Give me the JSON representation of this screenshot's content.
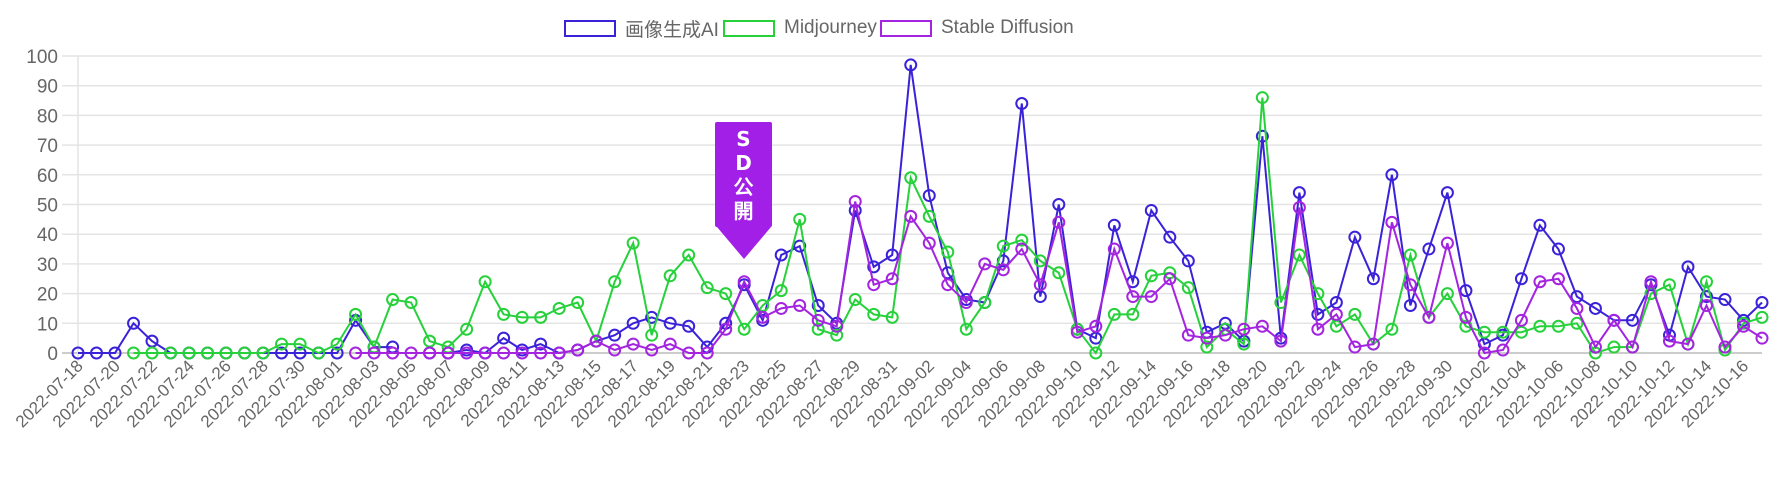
{
  "chart_data": {
    "type": "line",
    "title": "",
    "xlabel": "",
    "ylabel": "",
    "ylim": [
      0,
      100
    ],
    "yticks": [
      0,
      10,
      20,
      30,
      40,
      50,
      60,
      70,
      80,
      90,
      100
    ],
    "grid": true,
    "legend_position": "top",
    "x": [
      "2022-07-18",
      "2022-07-19",
      "2022-07-20",
      "2022-07-21",
      "2022-07-22",
      "2022-07-23",
      "2022-07-24",
      "2022-07-25",
      "2022-07-26",
      "2022-07-27",
      "2022-07-28",
      "2022-07-29",
      "2022-07-30",
      "2022-07-31",
      "2022-08-01",
      "2022-08-02",
      "2022-08-03",
      "2022-08-04",
      "2022-08-05",
      "2022-08-06",
      "2022-08-07",
      "2022-08-08",
      "2022-08-09",
      "2022-08-10",
      "2022-08-11",
      "2022-08-12",
      "2022-08-13",
      "2022-08-14",
      "2022-08-15",
      "2022-08-16",
      "2022-08-17",
      "2022-08-18",
      "2022-08-19",
      "2022-08-20",
      "2022-08-21",
      "2022-08-22",
      "2022-08-23",
      "2022-08-24",
      "2022-08-25",
      "2022-08-26",
      "2022-08-27",
      "2022-08-28",
      "2022-08-29",
      "2022-08-30",
      "2022-08-31",
      "2022-09-01",
      "2022-09-02",
      "2022-09-03",
      "2022-09-04",
      "2022-09-05",
      "2022-09-06",
      "2022-09-07",
      "2022-09-08",
      "2022-09-09",
      "2022-09-10",
      "2022-09-11",
      "2022-09-12",
      "2022-09-13",
      "2022-09-14",
      "2022-09-15",
      "2022-09-16",
      "2022-09-17",
      "2022-09-18",
      "2022-09-19",
      "2022-09-20",
      "2022-09-21",
      "2022-09-22",
      "2022-09-23",
      "2022-09-24",
      "2022-09-25",
      "2022-09-26",
      "2022-09-27",
      "2022-09-28",
      "2022-09-29",
      "2022-09-30",
      "2022-10-01",
      "2022-10-02",
      "2022-10-03",
      "2022-10-04",
      "2022-10-05",
      "2022-10-06",
      "2022-10-07",
      "2022-10-08",
      "2022-10-09",
      "2022-10-10",
      "2022-10-11",
      "2022-10-12",
      "2022-10-13",
      "2022-10-14",
      "2022-10-15",
      "2022-10-16",
      "2022-10-17"
    ],
    "xtick_labels_every": 2,
    "series": [
      {
        "name": "画像生成AI",
        "color": "#3a22d8",
        "values": [
          0,
          0,
          0,
          10,
          4,
          0,
          0,
          0,
          0,
          0,
          0,
          0,
          0,
          0,
          0,
          11,
          2,
          2,
          null,
          0,
          0,
          1,
          0,
          5,
          1,
          3,
          0,
          1,
          4,
          6,
          10,
          12,
          10,
          9,
          2,
          10,
          23,
          11,
          33,
          36,
          16,
          10,
          48,
          29,
          33,
          97,
          53,
          27,
          18,
          17,
          31,
          84,
          19,
          50,
          8,
          5,
          43,
          24,
          48,
          39,
          31,
          7,
          10,
          4,
          73,
          5,
          54,
          13,
          17,
          39,
          25,
          60,
          16,
          35,
          54,
          21,
          3,
          6,
          25,
          43,
          35,
          19,
          15,
          11,
          11,
          23,
          6,
          29,
          19,
          18,
          11,
          17
        ]
      },
      {
        "name": "Midjourney",
        "color": "#26d13a",
        "values": [
          null,
          null,
          null,
          0,
          0,
          0,
          0,
          0,
          0,
          0,
          0,
          3,
          3,
          0,
          3,
          13,
          2,
          18,
          17,
          4,
          2,
          8,
          24,
          13,
          12,
          12,
          15,
          17,
          4,
          24,
          37,
          6,
          26,
          33,
          22,
          20,
          8,
          16,
          21,
          45,
          8,
          6,
          18,
          13,
          12,
          59,
          46,
          34,
          8,
          17,
          36,
          38,
          31,
          27,
          8,
          0,
          13,
          13,
          26,
          27,
          22,
          2,
          8,
          3,
          86,
          17,
          33,
          20,
          9,
          13,
          3,
          8,
          33,
          12,
          20,
          9,
          7,
          7,
          7,
          9,
          9,
          10,
          0,
          2,
          2,
          20,
          23,
          3,
          24,
          1,
          10,
          12
        ]
      },
      {
        "name": "Stable Diffusion",
        "color": "#a424e0",
        "values": [
          null,
          null,
          null,
          null,
          null,
          null,
          null,
          null,
          null,
          null,
          null,
          null,
          null,
          null,
          null,
          0,
          0,
          0,
          0,
          0,
          0,
          0,
          0,
          0,
          0,
          0,
          0,
          1,
          4,
          1,
          3,
          1,
          3,
          0,
          0,
          8,
          24,
          12,
          15,
          16,
          11,
          9,
          51,
          23,
          25,
          46,
          37,
          23,
          17,
          30,
          28,
          35,
          23,
          44,
          7,
          9,
          35,
          19,
          19,
          25,
          6,
          5,
          6,
          8,
          9,
          4,
          49,
          8,
          13,
          2,
          3,
          44,
          23,
          12,
          37,
          12,
          0,
          1,
          11,
          24,
          25,
          15,
          2,
          11,
          2,
          24,
          4,
          3,
          16,
          2,
          9,
          5
        ]
      }
    ],
    "annotations": [
      {
        "text": "SD公開",
        "chars": [
          "S",
          "D",
          "公",
          "開"
        ],
        "type": "down-arrow",
        "x": "2022-08-23",
        "color": "#a21fe8"
      }
    ]
  },
  "legend": {
    "items": [
      {
        "label": "画像生成AI",
        "color": "#3a22d8"
      },
      {
        "label": "Midjourney",
        "color": "#26d13a"
      },
      {
        "label": "Stable Diffusion",
        "color": "#a424e0"
      }
    ]
  },
  "annotation": {
    "chars": [
      "S",
      "D",
      "公",
      "開"
    ]
  }
}
